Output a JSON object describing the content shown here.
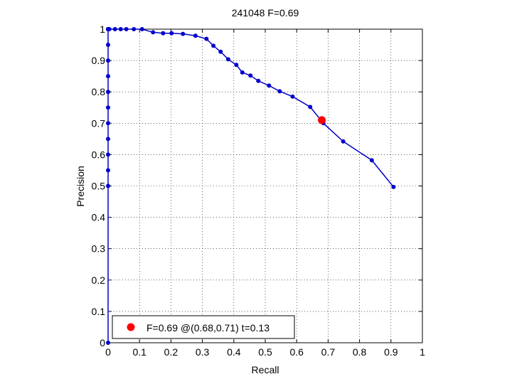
{
  "chart_data": {
    "type": "line",
    "title": "241048 F=0.69",
    "xlabel": "Recall",
    "ylabel": "Precision",
    "xlim": [
      0,
      1
    ],
    "ylim": [
      0,
      1
    ],
    "xticks": [
      "0",
      "0.1",
      "0.2",
      "0.3",
      "0.4",
      "0.5",
      "0.6",
      "0.7",
      "0.8",
      "0.9",
      "1"
    ],
    "yticks": [
      "0",
      "0.1",
      "0.2",
      "0.3",
      "0.4",
      "0.5",
      "0.6",
      "0.7",
      "0.8",
      "0.9",
      "1"
    ],
    "grid": true,
    "legend_position": "bottom-left",
    "series": [
      {
        "color": "#0000cc",
        "x": [
          0.0,
          0.0,
          0.0,
          0.0,
          0.0,
          0.0,
          0.0,
          0.0,
          0.0,
          0.0,
          0.0,
          0.0,
          0.0,
          0.0,
          0.0,
          0.0,
          0.0,
          0.0,
          0.0,
          0.0,
          0.0,
          0.004,
          0.022,
          0.04,
          0.058,
          0.082,
          0.108,
          0.143,
          0.175,
          0.202,
          0.238,
          0.278,
          0.313,
          0.335,
          0.358,
          0.382,
          0.408,
          0.427,
          0.453,
          0.478,
          0.512,
          0.546,
          0.587,
          0.643,
          0.685,
          0.748,
          0.839,
          0.908
        ],
        "y": [
          0.0,
          0.5,
          0.55,
          0.6,
          0.65,
          0.7,
          0.75,
          0.8,
          0.85,
          0.9,
          0.95,
          1.0,
          1.0,
          1.0,
          1.0,
          1.0,
          1.0,
          1.0,
          1.0,
          1.0,
          1.0,
          1.0,
          1.0,
          1.0,
          1.0,
          1.0,
          1.0,
          0.99,
          0.987,
          0.987,
          0.985,
          0.979,
          0.969,
          0.947,
          0.928,
          0.904,
          0.886,
          0.862,
          0.852,
          0.835,
          0.82,
          0.802,
          0.785,
          0.752,
          0.7,
          0.642,
          0.582,
          0.497
        ]
      }
    ],
    "highlight_point": {
      "x": 0.68,
      "y": 0.71,
      "color": "#ff0000",
      "label": "F=0.69 @(0.68,0.71) t=0.13"
    }
  }
}
